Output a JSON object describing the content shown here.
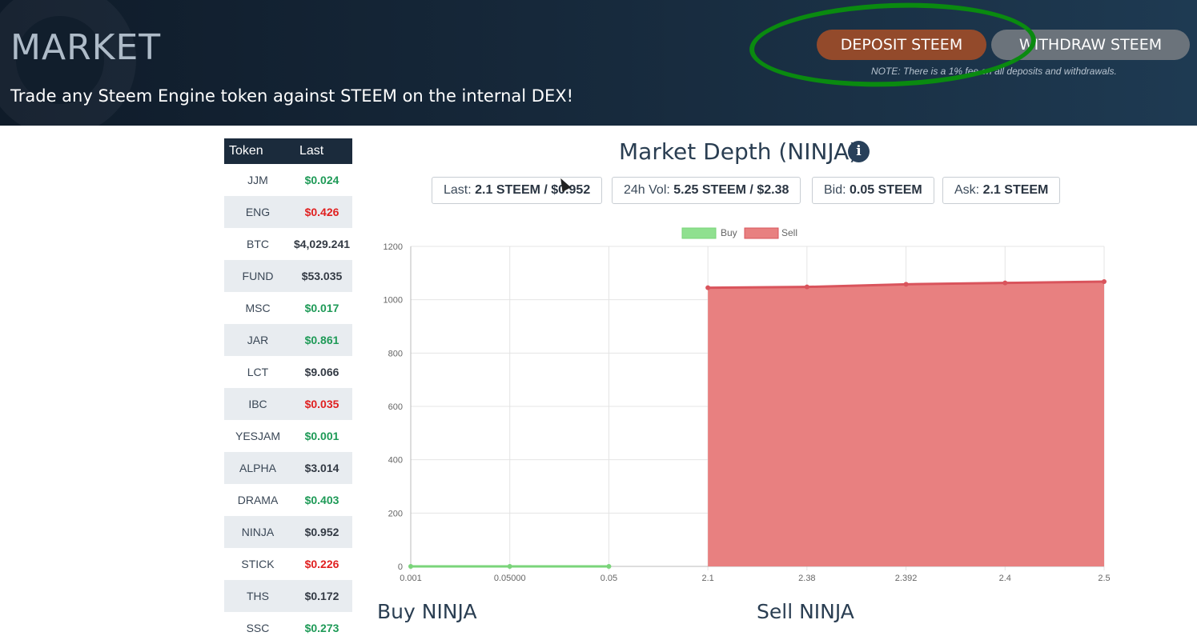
{
  "header": {
    "title": "MARKET",
    "subtitle": "Trade any Steem Engine token against STEEM on the internal DEX!",
    "deposit_label": "DEPOSIT STEEM",
    "withdraw_label": "WITHDRAW STEEM",
    "note": "NOTE: There is a 1% fee on all deposits and withdrawals."
  },
  "token_table": {
    "col_token": "Token",
    "col_last": "Last",
    "rows": [
      {
        "token": "JJM",
        "last": "$0.024",
        "trend": "up"
      },
      {
        "token": "ENG",
        "last": "$0.426",
        "trend": "down"
      },
      {
        "token": "BTC",
        "last": "$4,029.241",
        "trend": "flat"
      },
      {
        "token": "FUND",
        "last": "$53.035",
        "trend": "flat"
      },
      {
        "token": "MSC",
        "last": "$0.017",
        "trend": "up"
      },
      {
        "token": "JAR",
        "last": "$0.861",
        "trend": "up"
      },
      {
        "token": "LCT",
        "last": "$9.066",
        "trend": "flat"
      },
      {
        "token": "IBC",
        "last": "$0.035",
        "trend": "down"
      },
      {
        "token": "YESJAM",
        "last": "$0.001",
        "trend": "up"
      },
      {
        "token": "ALPHA",
        "last": "$3.014",
        "trend": "flat"
      },
      {
        "token": "DRAMA",
        "last": "$0.403",
        "trend": "up"
      },
      {
        "token": "NINJA",
        "last": "$0.952",
        "trend": "flat"
      },
      {
        "token": "STICK",
        "last": "$0.226",
        "trend": "down"
      },
      {
        "token": "THS",
        "last": "$0.172",
        "trend": "flat"
      },
      {
        "token": "SSC",
        "last": "$0.273",
        "trend": "up"
      }
    ]
  },
  "market": {
    "title": "Market Depth (NINJA)",
    "info_icon": "info-icon",
    "stats": [
      {
        "label": "Last:",
        "value": "2.1 STEEM / $0.952"
      },
      {
        "label": "24h Vol:",
        "value": "5.25 STEEM / $2.38"
      },
      {
        "label": "Bid:",
        "value": "0.05 STEEM"
      },
      {
        "label": "Ask:",
        "value": "2.1 STEEM"
      }
    ],
    "buy_title": "Buy NINJA",
    "sell_title": "Sell NINJA"
  },
  "colors": {
    "buy": "#8fe08f",
    "sell": "#e88080",
    "sell_line": "#d9545c",
    "deposit_button": "#934a2b",
    "withdraw_button": "#6b737b",
    "highlight_ring": "#0a8a10"
  },
  "chart_data": {
    "type": "area",
    "categories": [
      "0.001",
      "0.05000",
      "0.05",
      "2.1",
      "2.38",
      "2.392",
      "2.4",
      "2.5"
    ],
    "series": [
      {
        "name": "Buy",
        "values": [
          0,
          0,
          0,
          null,
          null,
          null,
          null,
          null
        ]
      },
      {
        "name": "Sell",
        "values": [
          null,
          null,
          null,
          1045,
          1048,
          1058,
          1063,
          1068
        ]
      }
    ],
    "ylim": [
      0,
      1200
    ],
    "yticks": [
      0,
      200,
      400,
      600,
      800,
      1000,
      1200
    ],
    "grid": true,
    "legend": "top-center"
  }
}
